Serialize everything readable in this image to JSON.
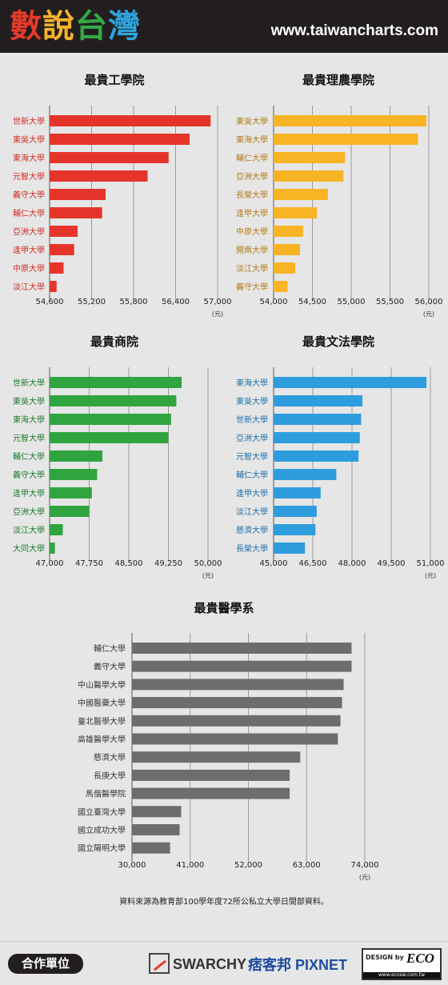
{
  "header": {
    "logo_chars": [
      "數",
      "說",
      "台",
      "灣"
    ],
    "site_url": "www.taiwancharts.com"
  },
  "colors": {
    "red": "#e5352b",
    "orange": "#f8b425",
    "green": "#2fa43f",
    "blue": "#2e9ddd",
    "gray": "#6d6d6d",
    "red_text": "#d42a22",
    "orange_text": "#b07a14",
    "green_text": "#1d7a2a",
    "blue_text": "#1a6faa",
    "gray_text": "#333333"
  },
  "chart_data": [
    {
      "type": "bar",
      "title": "最貴工學院",
      "categories": [
        "世新大學",
        "東吳大學",
        "東海大學",
        "元智大學",
        "義守大學",
        "輔仁大學",
        "亞洲大學",
        "逢甲大學",
        "中原大學",
        "淡江大學"
      ],
      "values": [
        56900,
        56600,
        56300,
        56000,
        55400,
        55350,
        55000,
        54950,
        54800,
        54700
      ],
      "ticks": [
        "54,600",
        "55,200",
        "55,800",
        "56,400",
        "57,000"
      ],
      "xlim": [
        54600,
        57000
      ],
      "unit": "(元)",
      "color": "red"
    },
    {
      "type": "bar",
      "title": "最貴理農學院",
      "categories": [
        "東吳大學",
        "東海大學",
        "輔仁大學",
        "亞洲大學",
        "長榮大學",
        "逢甲大學",
        "中原大學",
        "開南大學",
        "淡江大學",
        "義守大學"
      ],
      "values": [
        55970,
        55860,
        54920,
        54900,
        54700,
        54560,
        54380,
        54340,
        54280,
        54180
      ],
      "ticks": [
        "54,000",
        "54,500",
        "55,000",
        "55,500",
        "56,000"
      ],
      "xlim": [
        54000,
        56000
      ],
      "unit": "(元)",
      "color": "orange"
    },
    {
      "type": "bar",
      "title": "最貴商院",
      "categories": [
        "世新大學",
        "東吳大學",
        "東海大學",
        "元智大學",
        "輔仁大學",
        "義守大學",
        "逢甲大學",
        "亞洲大學",
        "淡江大學",
        "大同大學"
      ],
      "values": [
        49500,
        49400,
        49300,
        49250,
        48000,
        47900,
        47800,
        47750,
        47250,
        47100
      ],
      "ticks": [
        "47,000",
        "47,750",
        "48,500",
        "49,250",
        "50,000"
      ],
      "xlim": [
        47000,
        50000
      ],
      "unit": "(元)",
      "color": "green"
    },
    {
      "type": "bar",
      "title": "最貴文法學院",
      "categories": [
        "東海大學",
        "東吳大學",
        "世新大學",
        "亞洲大學",
        "元智大學",
        "輔仁大學",
        "逢甲大學",
        "淡江大學",
        "慈濟大學",
        "長榮大學"
      ],
      "values": [
        50850,
        48400,
        48350,
        48300,
        48250,
        47400,
        46800,
        46650,
        46600,
        46200
      ],
      "ticks": [
        "45,000",
        "46,500",
        "48,000",
        "49,500",
        "51,000"
      ],
      "xlim": [
        45000,
        51000
      ],
      "unit": "(元)",
      "color": "blue"
    },
    {
      "type": "bar",
      "title": "最貴醫學系",
      "categories": [
        "輔仁大學",
        "義守大學",
        "中山醫學大學",
        "中國醫藥大學",
        "臺北醫學大學",
        "高雄醫學大學",
        "慈濟大學",
        "長庚大學",
        "馬偕醫學院",
        "國立臺灣大學",
        "國立成功大學",
        "國立陽明大學"
      ],
      "values": [
        71500,
        71500,
        70000,
        69700,
        69400,
        68900,
        61800,
        59800,
        59800,
        39300,
        39000,
        37200
      ],
      "ticks": [
        "30,000",
        "41,000",
        "52,000",
        "63,000",
        "74,000"
      ],
      "xlim": [
        30000,
        74000
      ],
      "unit": "(元)",
      "color": "gray"
    }
  ],
  "source_note": "資料來源為教育部100學年度72所公私立大學日間部資料。",
  "footer": {
    "partner_label": "合作單位",
    "swarchy": "SWARCHY",
    "pixnet_cn": "痞客邦",
    "pixnet_en": "PIXNET",
    "design_by": "DESIGN by",
    "design_brand": "ECO",
    "design_url": "www.ecosw.com.tw"
  }
}
